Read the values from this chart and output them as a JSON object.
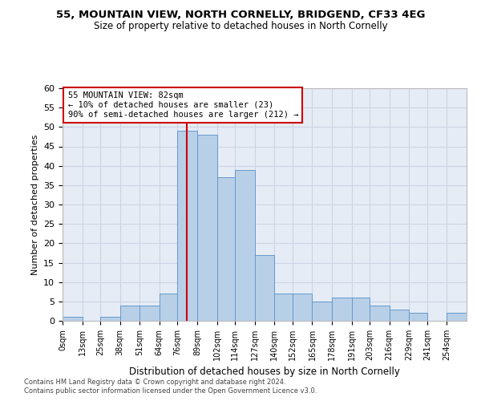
{
  "title1": "55, MOUNTAIN VIEW, NORTH CORNELLY, BRIDGEND, CF33 4EG",
  "title2": "Size of property relative to detached houses in North Cornelly",
  "xlabel": "Distribution of detached houses by size in North Cornelly",
  "ylabel": "Number of detached properties",
  "bin_labels": [
    "0sqm",
    "13sqm",
    "25sqm",
    "38sqm",
    "51sqm",
    "64sqm",
    "76sqm",
    "89sqm",
    "102sqm",
    "114sqm",
    "127sqm",
    "140sqm",
    "152sqm",
    "165sqm",
    "178sqm",
    "191sqm",
    "203sqm",
    "216sqm",
    "229sqm",
    "241sqm",
    "254sqm"
  ],
  "bin_edges": [
    0,
    13,
    25,
    38,
    51,
    64,
    76,
    89,
    102,
    114,
    127,
    140,
    152,
    165,
    178,
    191,
    203,
    216,
    229,
    241,
    254,
    267
  ],
  "bar_heights": [
    1,
    0,
    1,
    4,
    4,
    7,
    49,
    48,
    37,
    39,
    17,
    7,
    7,
    5,
    6,
    6,
    4,
    3,
    2,
    0,
    2
  ],
  "bar_color": "#b8cfe8",
  "bar_edge_color": "#6699cc",
  "property_line_x": 82,
  "property_line_color": "#cc0000",
  "annotation_text": "55 MOUNTAIN VIEW: 82sqm\n← 10% of detached houses are smaller (23)\n90% of semi-detached houses are larger (212) →",
  "annotation_box_color": "#ffffff",
  "annotation_box_edge": "#cc0000",
  "ylim": [
    0,
    60
  ],
  "yticks": [
    0,
    5,
    10,
    15,
    20,
    25,
    30,
    35,
    40,
    45,
    50,
    55,
    60
  ],
  "grid_color": "#ccd5e5",
  "background_color": "#e5ecf5",
  "footnote1": "Contains HM Land Registry data © Crown copyright and database right 2024.",
  "footnote2": "Contains public sector information licensed under the Open Government Licence v3.0."
}
